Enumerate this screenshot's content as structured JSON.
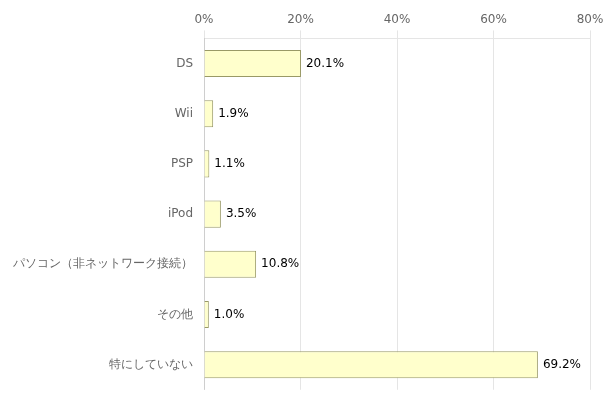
{
  "chart_data": {
    "type": "bar",
    "orientation": "horizontal",
    "categories": [
      "DS",
      "Wii",
      "PSP",
      "iPod",
      "パソコン（非ネットワーク接続）",
      "その他",
      "特にしていない"
    ],
    "values": [
      20.1,
      1.9,
      1.1,
      3.5,
      10.8,
      1.0,
      69.2
    ],
    "value_labels": [
      "20.1%",
      "1.9%",
      "1.1%",
      "3.5%",
      "10.8%",
      "1.0%",
      "69.2%"
    ],
    "data_labels": true,
    "color": "#ffffcc",
    "xlim": [
      0,
      80
    ],
    "xticks": [
      {
        "value": 0,
        "label": "0%"
      },
      {
        "value": 20,
        "label": "20%"
      },
      {
        "value": 40,
        "label": "40%"
      },
      {
        "value": 60,
        "label": "60%"
      },
      {
        "value": 80,
        "label": "80%"
      }
    ],
    "grid": true
  }
}
